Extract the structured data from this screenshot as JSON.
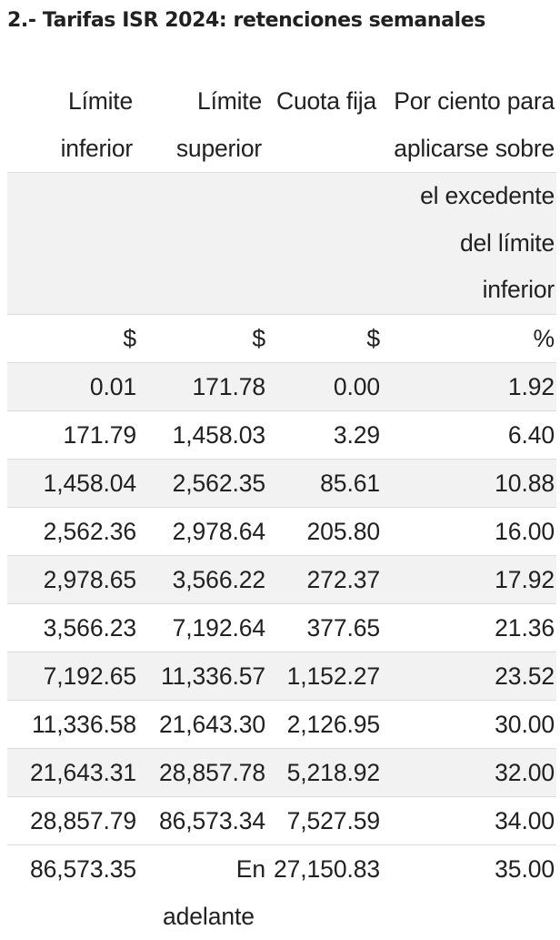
{
  "page": {
    "title": "2.- Tarifas ISR 2024: retenciones semanales"
  },
  "table": {
    "headers": {
      "limite_inferior": {
        "line1": "Límite",
        "line2": "inferior"
      },
      "limite_superior": {
        "line1": "Límite",
        "line2": "superior"
      },
      "cuota_fija": {
        "line1": "Cuota fija"
      },
      "por_ciento": {
        "line1": "Por ciento para",
        "line2": "aplicarse sobre",
        "line3": "el excedente",
        "line4": "del límite",
        "line5": "inferior"
      }
    },
    "units": [
      "$",
      "$",
      "$",
      "%"
    ],
    "rows": [
      [
        "0.01",
        "171.78",
        "0.00",
        "1.92"
      ],
      [
        "171.79",
        "1,458.03",
        "3.29",
        "6.40"
      ],
      [
        "1,458.04",
        "2,562.35",
        "85.61",
        "10.88"
      ],
      [
        "2,562.36",
        "2,978.64",
        "205.80",
        "16.00"
      ],
      [
        "2,978.65",
        "3,566.22",
        "272.37",
        "17.92"
      ],
      [
        "3,566.23",
        "7,192.64",
        "377.65",
        "21.36"
      ],
      [
        "7,192.65",
        "11,336.57",
        "1,152.27",
        "23.52"
      ],
      [
        "11,336.58",
        "21,643.30",
        "2,126.95",
        "30.00"
      ],
      [
        "21,643.31",
        "28,857.78",
        "5,218.92",
        "32.00"
      ],
      [
        "28,857.79",
        "86,573.34",
        "7,527.59",
        "34.00"
      ]
    ],
    "last_row": {
      "limite_inferior": "86,573.35",
      "limite_superior": "En adelante",
      "cuota_fija": "27,150.83",
      "por_ciento": "35.00"
    }
  }
}
